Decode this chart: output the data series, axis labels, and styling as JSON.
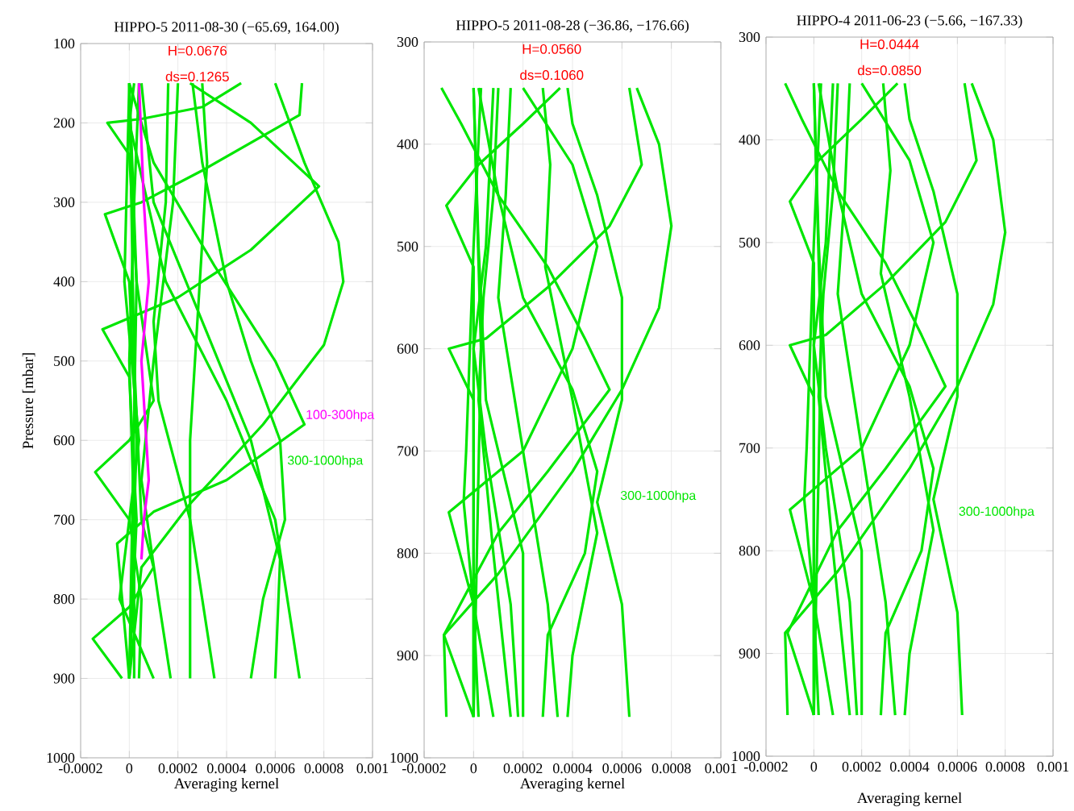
{
  "chart_data": [
    {
      "type": "line",
      "title": "HIPPO-5 2011-08-30  (−65.69, 164.00)",
      "xlabel": "Averaging kernel",
      "ylabel": "Pressure [mbar]",
      "annotations": [
        "H=0.0676",
        "ds=0.1265"
      ],
      "xlim": [
        -0.0002,
        0.001
      ],
      "ylim": [
        1000,
        100
      ],
      "xticks": [
        -0.0002,
        0,
        0.0002,
        0.0004,
        0.0006,
        0.0008,
        0.001
      ],
      "yticks": [
        100,
        200,
        300,
        400,
        500,
        600,
        700,
        800,
        900,
        1000
      ],
      "grid": true,
      "series": [
        {
          "name": "300-1000hpa",
          "color": "#00e600",
          "x": [
            0.0006,
            0.00072,
            0.00086,
            0.00088,
            0.0008,
            0.00055,
            0.00025,
            5e-05,
            0
          ],
          "values": [
            150,
            250,
            350,
            400,
            480,
            580,
            680,
            760,
            900
          ]
        },
        {
          "color": "#00e600",
          "x": [
            0.00071,
            0.0007,
            0.0003,
            5e-05,
            -0.0001,
            0,
            3e-05,
            0
          ],
          "values": [
            150,
            190,
            260,
            300,
            315,
            400,
            600,
            900
          ]
        },
        {
          "color": "#00e600",
          "x": [
            0.00025,
            0.0005,
            0.00078,
            0.0005,
            0.0002,
            -0.00011,
            0,
            3e-05,
            0
          ],
          "values": [
            150,
            200,
            280,
            360,
            420,
            460,
            520,
            700,
            900
          ]
        },
        {
          "color": "#00e600",
          "x": [
            0.00046,
            0.0003,
            5e-05,
            -9e-05,
            0,
            3e-05,
            0
          ],
          "values": [
            150,
            180,
            195,
            200,
            240,
            400,
            900
          ]
        },
        {
          "color": "#00e600",
          "x": [
            0,
            0.0001,
            0.00035,
            0.0006,
            0.00072,
            0.0004,
            0.0001,
            -5e-05,
            0
          ],
          "values": [
            150,
            250,
            380,
            500,
            580,
            650,
            690,
            730,
            900
          ]
        },
        {
          "color": "#00e600",
          "x": [
            2e-05,
            0,
            0.00015,
            0.0004,
            0.0006,
            0.0007
          ],
          "values": [
            150,
            200,
            400,
            550,
            700,
            900
          ]
        },
        {
          "color": "#00e600",
          "x": [
            5e-05,
            0.0001,
            0.0003,
            0.0005,
            0.00062,
            0.0006
          ],
          "values": [
            150,
            300,
            450,
            600,
            750,
            900
          ]
        },
        {
          "color": "#00e600",
          "x": [
            0.00026,
            0.0003,
            0.0004,
            0.0005,
            0.00062,
            0.00064,
            0.00055,
            0.0005
          ],
          "values": [
            150,
            250,
            400,
            500,
            600,
            700,
            800,
            900
          ]
        },
        {
          "color": "#00e600",
          "x": [
            0.00016,
            0.00015,
            0.0001,
            0.00012,
            0.00025,
            0.00035
          ],
          "values": [
            150,
            300,
            450,
            550,
            700,
            900
          ]
        },
        {
          "color": "#00e600",
          "x": [
            0.0003,
            0.00032,
            0.0003,
            0.00025,
            0.00025
          ],
          "values": [
            150,
            250,
            350,
            600,
            900
          ]
        },
        {
          "color": "#00e600",
          "x": [
            0.0002,
            0.00018,
            0.0001,
            5e-05,
            0.00012,
            0.00017
          ],
          "values": [
            150,
            300,
            500,
            650,
            800,
            900
          ]
        },
        {
          "color": "#00e600",
          "x": [
            0,
            3e-05,
            0.0001,
            0,
            -0.00014,
            0,
            5e-05,
            4e-05
          ],
          "values": [
            150,
            400,
            550,
            600,
            640,
            700,
            800,
            900
          ]
        },
        {
          "color": "#00e600",
          "x": [
            0,
            2e-05,
            5e-05,
            0.0001,
            0,
            -0.00015,
            -3e-05
          ],
          "values": [
            150,
            500,
            700,
            760,
            810,
            850,
            900
          ]
        },
        {
          "color": "#00e600",
          "x": [
            0,
            -2e-05,
            4e-05,
            -4e-05,
            0.0001
          ],
          "values": [
            150,
            400,
            600,
            800,
            900
          ]
        },
        {
          "color": "#00e600",
          "x": [
            4e-05,
            2e-05,
            0,
            2e-05,
            2e-05
          ],
          "values": [
            150,
            300,
            500,
            700,
            900
          ]
        },
        {
          "name": "100-300hpa",
          "color": "#ff00ff",
          "x": [
            4e-05,
            6e-05,
            8e-05,
            5e-05,
            8e-05,
            6e-05,
            5e-05
          ],
          "values": [
            150,
            300,
            400,
            500,
            650,
            700,
            750
          ]
        }
      ]
    },
    {
      "type": "line",
      "title": "HIPPO-5 2011-08-28 (−36.86, −176.66)",
      "xlabel": "Averaging kernel",
      "annotations": [
        "H=0.0560",
        "ds=0.1060"
      ],
      "xlim": [
        -0.0002,
        0.001
      ],
      "ylim": [
        1000,
        300
      ],
      "xticks": [
        -0.0002,
        0,
        0.0002,
        0.0004,
        0.0006,
        0.0008,
        0.001
      ],
      "yticks": [
        300,
        400,
        500,
        600,
        700,
        800,
        900,
        1000
      ],
      "grid": true,
      "series": [
        {
          "name": "300-1000hpa",
          "color": "#00e600",
          "x": [
            0.00066,
            0.00075,
            0.0008,
            0.00075,
            0.0006,
            0.0004,
            0.0001,
            -0.00012,
            -0.00011
          ],
          "values": [
            345,
            400,
            480,
            560,
            640,
            720,
            820,
            880,
            960
          ]
        },
        {
          "color": "#00e600",
          "x": [
            0.00063,
            0.00068,
            0.00055,
            0.0003,
            5e-05,
            -0.0001,
            0,
            0
          ],
          "values": [
            345,
            420,
            480,
            540,
            590,
            600,
            650,
            960
          ]
        },
        {
          "color": "#00e600",
          "x": [
            0.00038,
            0.0004,
            0.0005,
            0.0006,
            0.0006,
            0.0005,
            0.0006,
            0.00063
          ],
          "values": [
            345,
            380,
            450,
            550,
            650,
            750,
            850,
            960
          ]
        },
        {
          "color": "#00e600",
          "x": [
            0.00035,
            0.0002,
            2e-05,
            -0.00011,
            0,
            0
          ],
          "values": [
            345,
            380,
            420,
            460,
            520,
            960
          ]
        },
        {
          "color": "#00e600",
          "x": [
            0.00028,
            0.00031,
            0.00029,
            0.0004,
            0.0005,
            0.0004,
            0.00038
          ],
          "values": [
            345,
            420,
            520,
            650,
            780,
            900,
            960
          ]
        },
        {
          "color": "#00e600",
          "x": [
            0.0002,
            0.0004,
            0.0005,
            0.0004,
            0.0002,
            -0.0001,
            0,
            2e-05
          ],
          "values": [
            345,
            420,
            500,
            600,
            700,
            760,
            850,
            960
          ]
        },
        {
          "color": "#00e600",
          "x": [
            2e-05,
            0.0001,
            0.0002,
            0.0004,
            0.0005,
            0.00045,
            0.0003,
            0.00028
          ],
          "values": [
            345,
            450,
            550,
            640,
            720,
            800,
            880,
            960
          ]
        },
        {
          "color": "#00e600",
          "x": [
            -0.00013,
            -5e-05,
            0.0001,
            0.0003,
            0.00045,
            0.00055,
            0.0003,
            0.0001,
            -0.00012,
            0
          ],
          "values": [
            345,
            380,
            450,
            520,
            590,
            640,
            720,
            780,
            880,
            960
          ]
        },
        {
          "color": "#00e600",
          "x": [
            0.00015,
            0.00013,
            0.0001,
            0.0002,
            0.0003,
            0.00034
          ],
          "values": [
            345,
            450,
            550,
            700,
            850,
            960
          ]
        },
        {
          "color": "#00e600",
          "x": [
            8e-05,
            5e-05,
            0,
            5e-05,
            0.00015,
            0.00018
          ],
          "values": [
            345,
            500,
            600,
            700,
            850,
            960
          ]
        },
        {
          "color": "#00e600",
          "x": [
            0.0001,
            8e-05,
            4e-05,
            2e-05,
            8e-05,
            0.00015
          ],
          "values": [
            345,
            450,
            550,
            650,
            800,
            960
          ]
        },
        {
          "color": "#00e600",
          "x": [
            0,
            2e-05,
            5e-05,
            0.0002,
            0.0002
          ],
          "values": [
            345,
            500,
            650,
            800,
            960
          ]
        },
        {
          "color": "#00e600",
          "x": [
            3e-05,
            0,
            -3e-05,
            -4e-05,
            0,
            8e-05
          ],
          "values": [
            345,
            500,
            700,
            750,
            850,
            960
          ]
        },
        {
          "color": "#00e600",
          "x": [
            0,
            3e-05,
            0
          ],
          "values": [
            345,
            600,
            960
          ]
        }
      ]
    },
    {
      "type": "line",
      "title": "HIPPO-4 2011-06-23  (−5.66, −167.33)",
      "xlabel": "Averaging kernel",
      "annotations": [
        "H=0.0444",
        "ds=0.0850"
      ],
      "xlim": [
        -0.0002,
        0.001
      ],
      "ylim": [
        1000,
        300
      ],
      "xticks": [
        -0.0002,
        0,
        0.0002,
        0.0004,
        0.0006,
        0.0008,
        0.001
      ],
      "yticks": [
        300,
        400,
        500,
        600,
        700,
        800,
        900,
        1000
      ],
      "grid": true,
      "series": [
        {
          "name": "300-1000hpa",
          "color": "#00e600",
          "x": [
            0.00066,
            0.00075,
            0.0008,
            0.00075,
            0.0006,
            0.0004,
            0.0001,
            -0.00012,
            -0.00011
          ],
          "values": [
            345,
            400,
            490,
            560,
            640,
            720,
            820,
            880,
            960
          ]
        },
        {
          "color": "#00e600",
          "x": [
            0.00063,
            0.00068,
            0.00055,
            0.0003,
            5e-05,
            -0.0001,
            0,
            0
          ],
          "values": [
            345,
            420,
            480,
            540,
            590,
            600,
            650,
            960
          ]
        },
        {
          "color": "#00e600",
          "x": [
            0.00038,
            0.0004,
            0.0005,
            0.0006,
            0.0006,
            0.0005,
            0.0006,
            0.00062
          ],
          "values": [
            345,
            380,
            450,
            550,
            650,
            750,
            860,
            960
          ]
        },
        {
          "color": "#00e600",
          "x": [
            0.00035,
            0.0002,
            2e-05,
            -0.0001,
            0,
            0
          ],
          "values": [
            345,
            380,
            420,
            460,
            520,
            960
          ]
        },
        {
          "color": "#00e600",
          "x": [
            0.00029,
            0.00032,
            0.00028,
            0.0004,
            0.0005,
            0.0004,
            0.00038
          ],
          "values": [
            345,
            430,
            530,
            650,
            780,
            900,
            960
          ]
        },
        {
          "color": "#00e600",
          "x": [
            0.0002,
            0.0004,
            0.0005,
            0.0004,
            0.0002,
            -0.0001,
            0,
            2e-05
          ],
          "values": [
            345,
            420,
            500,
            600,
            700,
            760,
            850,
            960
          ]
        },
        {
          "color": "#00e600",
          "x": [
            2e-05,
            0.0001,
            0.0002,
            0.0004,
            0.0005,
            0.00045,
            0.0003,
            0.00028
          ],
          "values": [
            345,
            450,
            550,
            640,
            720,
            800,
            880,
            960
          ]
        },
        {
          "color": "#00e600",
          "x": [
            -0.00012,
            -5e-05,
            0.0001,
            0.0003,
            0.00045,
            0.00055,
            0.0003,
            0.0001,
            -0.00011,
            0
          ],
          "values": [
            345,
            380,
            450,
            520,
            590,
            640,
            720,
            780,
            880,
            960
          ]
        },
        {
          "color": "#00e600",
          "x": [
            0.00015,
            0.00013,
            0.0001,
            0.0002,
            0.0003,
            0.00034
          ],
          "values": [
            345,
            450,
            550,
            700,
            850,
            960
          ]
        },
        {
          "color": "#00e600",
          "x": [
            8e-05,
            5e-05,
            0,
            5e-05,
            0.00015,
            0.00018
          ],
          "values": [
            345,
            500,
            600,
            700,
            850,
            960
          ]
        },
        {
          "color": "#00e600",
          "x": [
            0.0001,
            8e-05,
            4e-05,
            2e-05,
            8e-05,
            0.00015
          ],
          "values": [
            345,
            450,
            550,
            650,
            800,
            960
          ]
        },
        {
          "color": "#00e600",
          "x": [
            0,
            2e-05,
            5e-05,
            0.0002,
            0.0002
          ],
          "values": [
            345,
            500,
            650,
            800,
            960
          ]
        },
        {
          "color": "#00e600",
          "x": [
            3e-05,
            0,
            -3e-05,
            -4e-05,
            0,
            8e-05
          ],
          "values": [
            345,
            500,
            700,
            750,
            850,
            960
          ]
        },
        {
          "color": "#00e600",
          "x": [
            0,
            3e-05,
            0
          ],
          "values": [
            345,
            600,
            960
          ]
        }
      ]
    }
  ]
}
